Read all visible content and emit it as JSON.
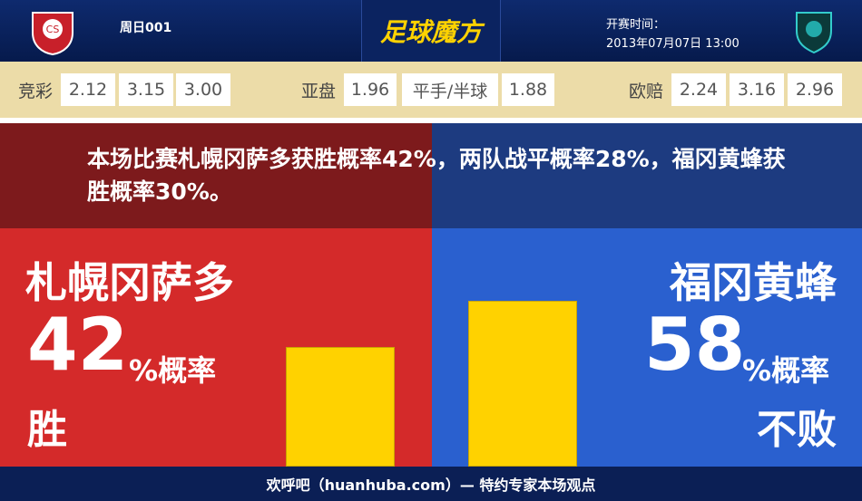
{
  "header": {
    "match_no": "周日001",
    "brand": "足球魔方",
    "kickoff_label": "开赛时间：",
    "kickoff_time": "2013年07月07日 13:00"
  },
  "odds": [
    {
      "label": "竞彩",
      "values": [
        "2.12",
        "3.15",
        "3.00"
      ]
    },
    {
      "label": "亚盘",
      "values": [
        "1.96",
        "平手/半球",
        "1.88"
      ]
    },
    {
      "label": "欧赔",
      "values": [
        "2.24",
        "3.16",
        "2.96"
      ]
    }
  ],
  "summary": "本场比赛札幌冈萨多获胜概率42%，两队战平概率28%，福冈黄蜂获胜概率30%。",
  "home": {
    "name": "札幌冈萨多",
    "percent": 42,
    "unit": "%概率",
    "outcome": "胜"
  },
  "away": {
    "name": "福冈黄蜂",
    "percent": 58,
    "unit": "%概率",
    "outcome": "不败"
  },
  "footer": "欢呼吧（huanhuba.com）— 特约专家本场观点"
}
